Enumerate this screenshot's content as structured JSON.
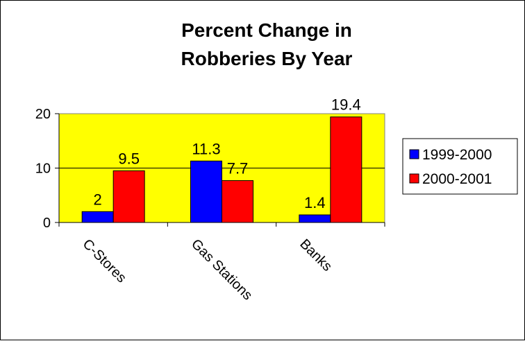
{
  "chart_data": {
    "type": "bar",
    "title_lines": [
      "Percent Change in",
      "Robberies By Year"
    ],
    "categories": [
      "C-Stores",
      "Gas Stations",
      "Banks"
    ],
    "series": [
      {
        "name": "1999-2000",
        "values": [
          2,
          11.3,
          1.4
        ],
        "color": "#0000ff"
      },
      {
        "name": "2000-2001",
        "values": [
          9.5,
          7.7,
          19.4
        ],
        "color": "#ff0000"
      }
    ],
    "data_labels": [
      [
        "2",
        "11.3",
        "1.4"
      ],
      [
        "9.5",
        "7.7",
        "19.4"
      ]
    ],
    "ylim": [
      0,
      20
    ],
    "yticks": [
      0,
      10,
      20
    ],
    "grid": true,
    "plot_background": "#ffff00",
    "legend_position": "right",
    "xlabel": "",
    "ylabel": ""
  }
}
